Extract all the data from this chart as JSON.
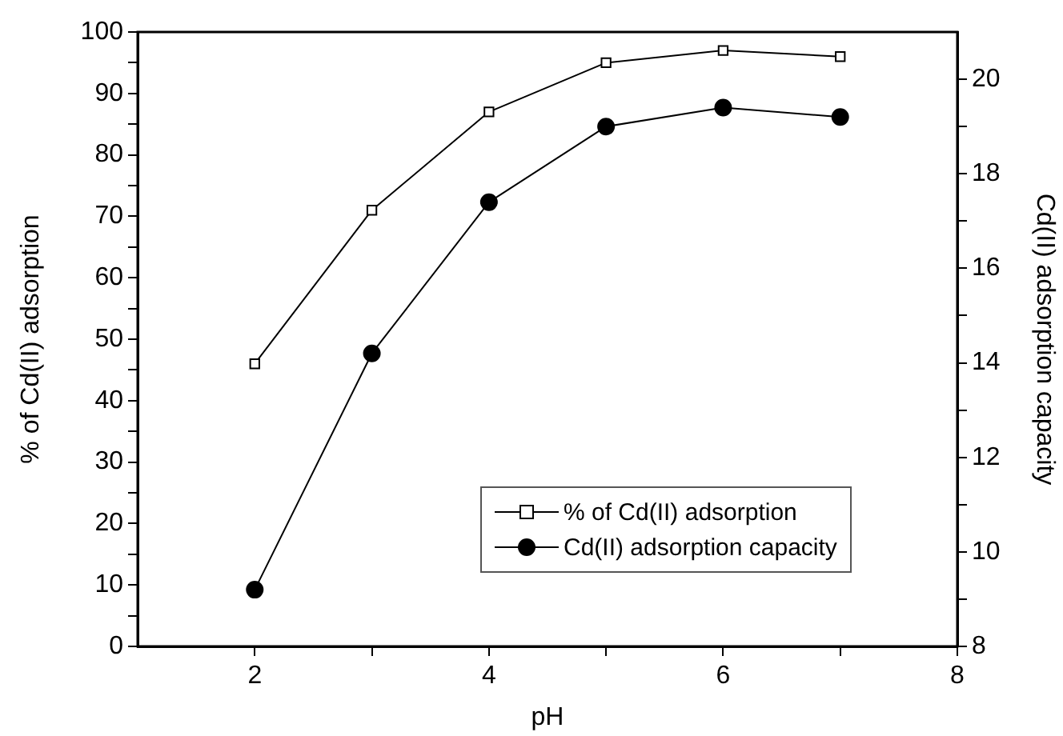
{
  "chart_data": {
    "type": "line",
    "xlabel": "pH",
    "ylabel": "% of Cd(II) adsorption",
    "y2label": "Cd(II) adsorption capacity",
    "x": [
      2,
      3,
      4,
      5,
      6,
      7
    ],
    "series": [
      {
        "name": "% of Cd(II) adsorption",
        "color": "#000000",
        "marker": "square",
        "values": [
          46,
          71,
          87,
          95,
          97,
          96
        ]
      },
      {
        "name": "Cd(II) adsorption capacity",
        "color": "#000000",
        "marker": "circle",
        "axis": "y2",
        "values": [
          9.2,
          14.2,
          17.4,
          19.0,
          19.4,
          19.2
        ]
      }
    ],
    "xlim": [
      1,
      8
    ],
    "xticks": [
      2,
      {
        "value": 3,
        "label": null
      },
      4,
      {
        "value": 5,
        "label": null
      },
      6,
      {
        "value": 7,
        "label": null
      },
      8
    ],
    "ylim": [
      0,
      100
    ],
    "yticks": [
      0,
      {
        "value": 5,
        "label": null
      },
      10,
      {
        "value": 15,
        "label": null
      },
      20,
      {
        "value": 25,
        "label": null
      },
      30,
      {
        "value": 35,
        "label": null
      },
      40,
      {
        "value": 45,
        "label": null
      },
      50,
      {
        "value": 55,
        "label": null
      },
      60,
      {
        "value": 65,
        "label": null
      },
      70,
      {
        "value": 75,
        "label": null
      },
      80,
      {
        "value": 85,
        "label": null
      },
      90,
      {
        "value": 95,
        "label": null
      },
      100
    ],
    "y2lim": [
      8,
      21
    ],
    "y2ticks": [
      8,
      {
        "value": 9,
        "label": null
      },
      10,
      {
        "value": 11,
        "label": null
      },
      12,
      {
        "value": 13,
        "label": null
      },
      14,
      {
        "value": 15,
        "label": null
      },
      16,
      {
        "value": 17,
        "label": null
      },
      18,
      {
        "value": 19,
        "label": null
      },
      20
    ],
    "grid": false,
    "legend": "bottom right",
    "line_style": "solid"
  }
}
